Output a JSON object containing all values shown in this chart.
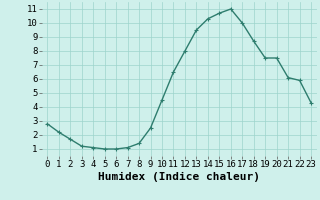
{
  "title": "",
  "xlabel": "Humidex (Indice chaleur)",
  "ylabel": "",
  "x": [
    0,
    1,
    2,
    3,
    4,
    5,
    6,
    7,
    8,
    9,
    10,
    11,
    12,
    13,
    14,
    15,
    16,
    17,
    18,
    19,
    20,
    21,
    22,
    23
  ],
  "y": [
    2.8,
    2.2,
    1.7,
    1.2,
    1.1,
    1.0,
    1.0,
    1.1,
    1.4,
    2.5,
    4.5,
    6.5,
    8.0,
    9.5,
    10.3,
    10.7,
    11.0,
    10.0,
    8.7,
    7.5,
    7.5,
    6.1,
    5.9,
    4.3
  ],
  "line_color": "#2e7d6e",
  "marker": "+",
  "marker_size": 3.5,
  "marker_linewidth": 0.8,
  "bg_color": "#cff0eb",
  "grid_color": "#9dd4cc",
  "xlim": [
    -0.5,
    23.5
  ],
  "ylim": [
    0.5,
    11.5
  ],
  "yticks": [
    1,
    2,
    3,
    4,
    5,
    6,
    7,
    8,
    9,
    10,
    11
  ],
  "xticks": [
    0,
    1,
    2,
    3,
    4,
    5,
    6,
    7,
    8,
    9,
    10,
    11,
    12,
    13,
    14,
    15,
    16,
    17,
    18,
    19,
    20,
    21,
    22,
    23
  ],
  "tick_fontsize": 6.5,
  "xlabel_fontsize": 8,
  "linewidth": 1.0
}
